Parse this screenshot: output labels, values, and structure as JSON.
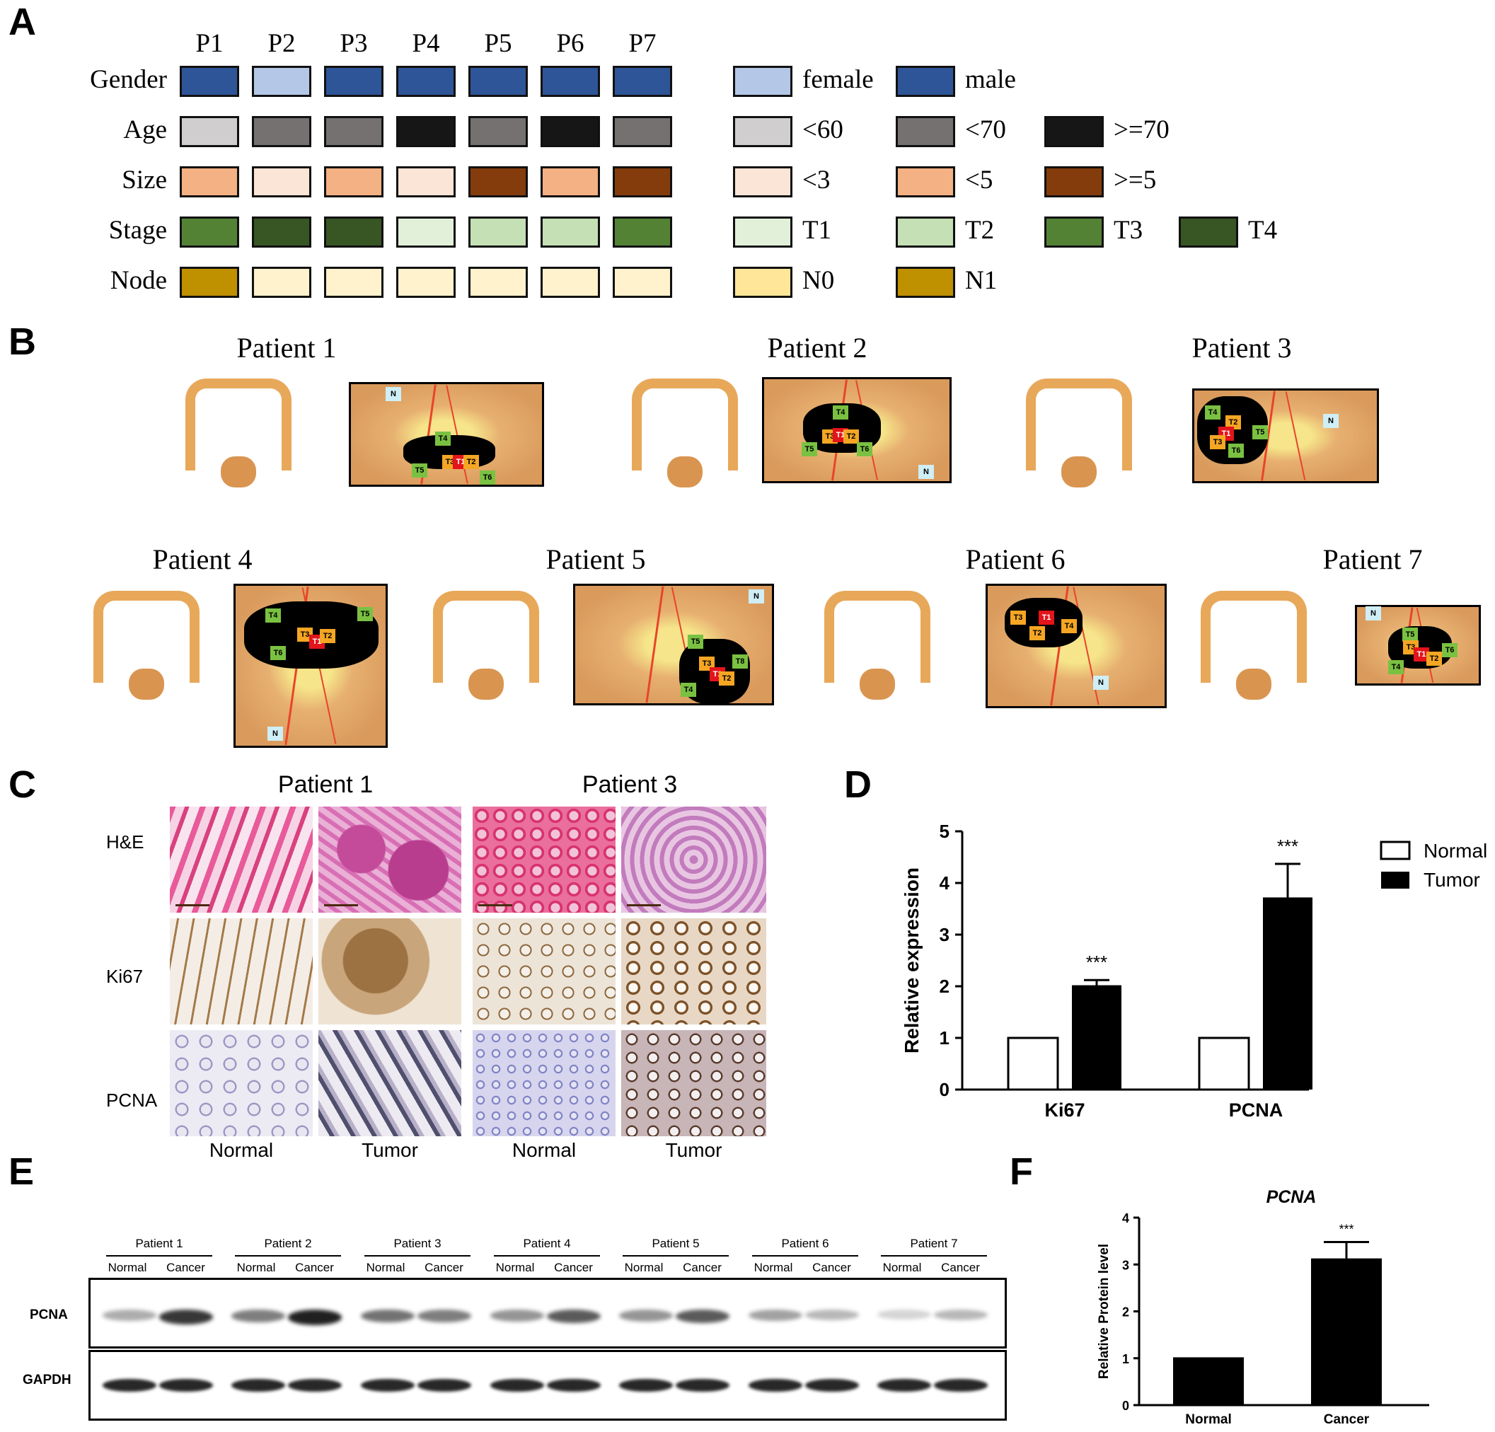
{
  "panels": {
    "A": "A",
    "B": "B",
    "C": "C",
    "D": "D",
    "E": "E",
    "F": "F"
  },
  "panelA": {
    "patients": [
      "P1",
      "P2",
      "P3",
      "P4",
      "P5",
      "P6",
      "P7"
    ],
    "rows": [
      {
        "label": "Gender",
        "colors": [
          "#2e5597",
          "#b4c7e7",
          "#2e5597",
          "#2e5597",
          "#2e5597",
          "#2e5597",
          "#2e5597"
        ]
      },
      {
        "label": "Age",
        "colors": [
          "#d0cece",
          "#767171",
          "#767171",
          "#161616",
          "#767171",
          "#161616",
          "#767171"
        ]
      },
      {
        "label": "Size",
        "colors": [
          "#f4b183",
          "#fbe5d6",
          "#f4b183",
          "#fbe5d6",
          "#843c0c",
          "#f4b183",
          "#843c0c"
        ]
      },
      {
        "label": "Stage",
        "colors": [
          "#548235",
          "#375623",
          "#375623",
          "#e2f0d9",
          "#c5e0b4",
          "#c5e0b4",
          "#548235"
        ]
      },
      {
        "label": "Node",
        "colors": [
          "#bf9000",
          "#fff2cc",
          "#fff2cc",
          "#fff2cc",
          "#fff2cc",
          "#fff2cc",
          "#fff2cc"
        ]
      }
    ],
    "legends": [
      [
        {
          "color": "#b4c7e7",
          "text": "female"
        },
        {
          "color": "#2e5597",
          "text": "male"
        }
      ],
      [
        {
          "color": "#d0cece",
          "text": "<60"
        },
        {
          "color": "#767171",
          "text": "<70"
        },
        {
          "color": "#161616",
          "text": ">=70"
        }
      ],
      [
        {
          "color": "#fbe5d6",
          "text": "<3"
        },
        {
          "color": "#f4b183",
          "text": "<5"
        },
        {
          "color": "#843c0c",
          "text": ">=5"
        }
      ],
      [
        {
          "color": "#e2f0d9",
          "text": "T1"
        },
        {
          "color": "#c5e0b4",
          "text": "T2"
        },
        {
          "color": "#548235",
          "text": "T3"
        },
        {
          "color": "#375623",
          "text": "T4"
        }
      ],
      [
        {
          "color": "#ffe699",
          "text": "N0"
        },
        {
          "color": "#bf9000",
          "text": "N1"
        }
      ]
    ]
  },
  "panelB": {
    "patients": [
      "Patient 1",
      "Patient 2",
      "Patient 3",
      "Patient 4",
      "Patient 5",
      "Patient 6",
      "Patient 7"
    ],
    "tags": {
      "T1": "T1",
      "T2": "T2",
      "T3": "T3",
      "T4": "T4",
      "T5": "T5",
      "T6": "T6",
      "N": "N"
    }
  },
  "panelC": {
    "groups": [
      "Patient 1",
      "Patient 3"
    ],
    "rows": [
      "H&E",
      "Ki67",
      "PCNA"
    ],
    "columns": [
      "Normal",
      "Tumor",
      "Normal",
      "Tumor"
    ]
  },
  "panelE": {
    "patients": [
      "Patient 1",
      "Patient 2",
      "Patient 3",
      "Patient 4",
      "Patient 5",
      "Patient 6",
      "Patient 7"
    ],
    "lanes": [
      "Normal",
      "Cancer"
    ],
    "blots": [
      "PCNA",
      "GAPDH"
    ]
  },
  "colors": {
    "tumor": "#000000",
    "normal": "#ffffff",
    "tag_red": "#e3141b",
    "tag_orange": "#f5a623",
    "tag_green": "#7ac142",
    "tag_blue": "#cfeef5"
  },
  "chart_data": [
    {
      "type": "bar",
      "panel": "D",
      "categories": [
        "Ki67",
        "PCNA"
      ],
      "series": [
        {
          "name": "Normal",
          "values": [
            1.0,
            1.0
          ],
          "errors": [
            0,
            0
          ]
        },
        {
          "name": "Tumor",
          "values": [
            2.02,
            3.72
          ],
          "errors": [
            0.1,
            0.65
          ]
        }
      ],
      "significance": [
        "***",
        "***"
      ],
      "ylabel": "Relative expression",
      "yticks": [
        0,
        1,
        2,
        3,
        4,
        5
      ],
      "ylim": [
        0,
        5
      ],
      "legend": "top-right"
    },
    {
      "type": "bar",
      "panel": "F",
      "title": "PCNA",
      "categories": [
        "Normal",
        "Cancer"
      ],
      "values": [
        1.02,
        3.13
      ],
      "errors": [
        0,
        0.35
      ],
      "significance": [
        "",
        "***"
      ],
      "ylabel": "Relative Protein level",
      "yticks": [
        0,
        1,
        2,
        3,
        4
      ],
      "ylim": [
        0,
        4
      ]
    }
  ]
}
